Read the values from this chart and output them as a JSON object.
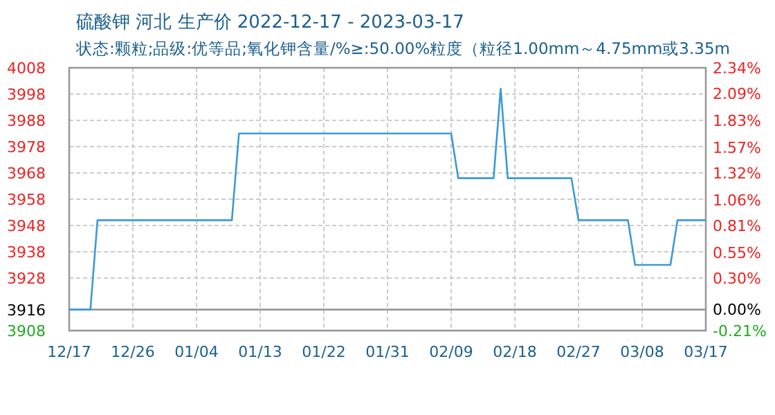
{
  "chart_data": {
    "type": "line",
    "title": "硫酸钾 河北 生产价 2022-12-17 - 2023-03-17",
    "subtitle": "状态:颗粒;品级:优等品;氧化钾含量/%≥:50.00%粒度（粒径1.00mm～4.75mm或3.35m",
    "x": [
      "2022-12-17",
      "2022-12-20",
      "2022-12-21",
      "2023-01-09",
      "2023-01-10",
      "2023-02-09",
      "2023-02-10",
      "2023-02-15",
      "2023-02-16",
      "2023-02-17",
      "2023-02-26",
      "2023-02-27",
      "2023-03-06",
      "2023-03-07",
      "2023-03-12",
      "2023-03-13",
      "2023-03-17"
    ],
    "series": [
      {
        "color": "#3a9ad9",
        "values": [
          3916,
          3916,
          3950,
          3950,
          3983,
          3983,
          3966,
          3966,
          4000,
          3966,
          3966,
          3950,
          3950,
          3933,
          3933,
          3950,
          3950
        ]
      }
    ],
    "xlim": [
      "2022-12-17",
      "2023-03-17"
    ],
    "xticks": [
      {
        "value": "2022-12-17",
        "label": "12/17"
      },
      {
        "value": "2022-12-26",
        "label": "12/26"
      },
      {
        "value": "2023-01-04",
        "label": "01/04"
      },
      {
        "value": "2023-01-13",
        "label": "01/13"
      },
      {
        "value": "2023-01-22",
        "label": "01/22"
      },
      {
        "value": "2023-01-31",
        "label": "01/31"
      },
      {
        "value": "2023-02-09",
        "label": "02/09"
      },
      {
        "value": "2023-02-18",
        "label": "02/18"
      },
      {
        "value": "2023-02-27",
        "label": "02/27"
      },
      {
        "value": "2023-03-08",
        "label": "03/08"
      },
      {
        "value": "2023-03-17",
        "label": "03/17"
      }
    ],
    "ylim": [
      3908,
      4008
    ],
    "yticks": [
      4008,
      3998,
      3988,
      3978,
      3968,
      3958,
      3948,
      3938,
      3928,
      3916,
      3908
    ],
    "y2lim": [
      -0.21,
      2.34
    ],
    "y2ticks": [
      {
        "value": 2.34,
        "label": "2.34%"
      },
      {
        "value": 2.09,
        "label": "2.09%"
      },
      {
        "value": 1.83,
        "label": "1.83%"
      },
      {
        "value": 1.57,
        "label": "1.57%"
      },
      {
        "value": 1.32,
        "label": "1.32%"
      },
      {
        "value": 1.06,
        "label": "1.06%"
      },
      {
        "value": 0.81,
        "label": "0.81%"
      },
      {
        "value": 0.55,
        "label": "0.55%"
      },
      {
        "value": 0.3,
        "label": "0.30%"
      },
      {
        "value": 0.0,
        "label": "0.00%"
      },
      {
        "value": -0.21,
        "label": "-0.21%"
      }
    ],
    "ref_lines": [
      {
        "axis": "y",
        "value": 3916,
        "color": "#999999"
      }
    ],
    "grid": true
  }
}
